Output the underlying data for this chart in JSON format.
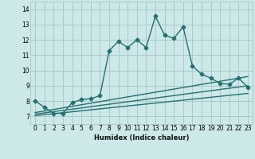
{
  "xlabel": "Humidex (Indice chaleur)",
  "xlim": [
    -0.5,
    23.5
  ],
  "ylim": [
    6.5,
    14.5
  ],
  "yticks": [
    7,
    8,
    9,
    10,
    11,
    12,
    13,
    14
  ],
  "xticks": [
    0,
    1,
    2,
    3,
    4,
    5,
    6,
    7,
    8,
    9,
    10,
    11,
    12,
    13,
    14,
    15,
    16,
    17,
    18,
    19,
    20,
    21,
    22,
    23
  ],
  "xtick_labels": [
    "0",
    "1",
    "2",
    "3",
    "4",
    "5",
    "6",
    "7",
    "8",
    "9",
    "10",
    "11",
    "12",
    "13",
    "14",
    "15",
    "16",
    "17",
    "18",
    "19",
    "20",
    "21",
    "22",
    "23"
  ],
  "background_color": "#cce8e8",
  "grid_color": "#aacaca",
  "line_color": "#257070",
  "line_width": 1.0,
  "marker_size": 2.5,
  "main_series_x": [
    0,
    1,
    2,
    3,
    4,
    5,
    6,
    7,
    8,
    9,
    10,
    11,
    12,
    13,
    14,
    15,
    16,
    17,
    18,
    19,
    20,
    21,
    22,
    23
  ],
  "main_series_y": [
    8.0,
    7.6,
    7.2,
    7.2,
    7.9,
    8.1,
    8.15,
    8.35,
    11.3,
    11.9,
    11.5,
    12.0,
    11.5,
    13.55,
    12.3,
    12.1,
    12.85,
    10.3,
    9.75,
    9.5,
    9.15,
    9.1,
    9.5,
    8.9
  ],
  "line2_x": [
    0,
    23
  ],
  "line2_y": [
    7.25,
    9.6
  ],
  "line3_x": [
    0,
    23
  ],
  "line3_y": [
    7.15,
    9.0
  ],
  "line4_x": [
    0,
    23
  ],
  "line4_y": [
    7.05,
    8.5
  ]
}
